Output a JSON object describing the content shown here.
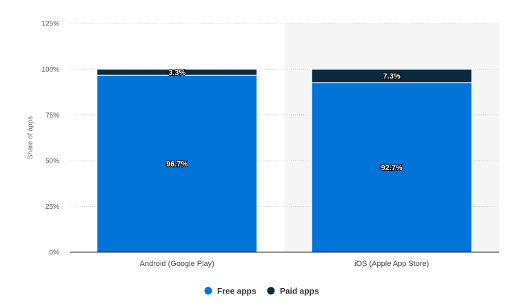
{
  "chart_data": {
    "type": "bar",
    "stacked": true,
    "categories": [
      "Android (Google Play)",
      "iOS (Apple App Store)"
    ],
    "series": [
      {
        "name": "Free apps",
        "values": [
          96.7,
          92.7
        ],
        "color": "#0074d9",
        "labels": [
          "96.7%",
          "92.7%"
        ]
      },
      {
        "name": "Paid apps",
        "values": [
          3.3,
          7.3
        ],
        "color": "#0b2a3f",
        "labels": [
          "3.3%",
          "7.3%"
        ]
      }
    ],
    "ylabel": "Share of apps",
    "ylim": [
      0,
      125
    ],
    "yticks": [
      0,
      25,
      50,
      75,
      100,
      125
    ],
    "ytick_labels": [
      "0%",
      "25%",
      "50%",
      "75%",
      "100%",
      "125%"
    ],
    "grid": true,
    "legend_position": "bottom",
    "highlight_color": "#f5f5f5"
  }
}
